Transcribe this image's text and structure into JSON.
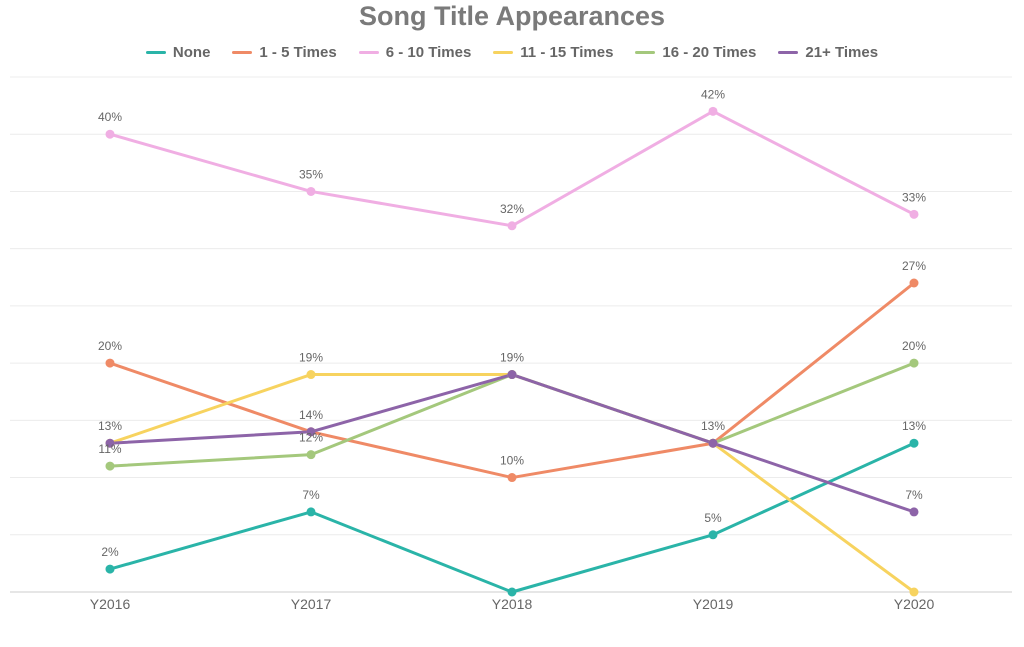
{
  "chart_data": {
    "type": "line",
    "title": "Song Title Appearances",
    "categories": [
      "Y2016",
      "Y2017",
      "Y2018",
      "Y2019",
      "Y2020"
    ],
    "ylim": [
      0,
      45
    ],
    "grid": true,
    "legend_position": "top",
    "value_suffix": "%",
    "series": [
      {
        "name": "None",
        "color": "#2ab4a8",
        "values": [
          2,
          7,
          0,
          5,
          13
        ]
      },
      {
        "name": "1 - 5 Times",
        "color": "#ef8a66",
        "values": [
          20,
          14,
          10,
          13,
          27
        ]
      },
      {
        "name": "6 - 10 Times",
        "color": "#f0aee3",
        "values": [
          40,
          35,
          32,
          42,
          33
        ]
      },
      {
        "name": "11 - 15 Times",
        "color": "#f7d35f",
        "values": [
          13,
          19,
          19,
          13,
          0
        ]
      },
      {
        "name": "16 - 20 Times",
        "color": "#a4c87c",
        "values": [
          11,
          12,
          19,
          13,
          20
        ]
      },
      {
        "name": "21+ Times",
        "color": "#8d64a8",
        "values": [
          13,
          14,
          19,
          13,
          7
        ]
      }
    ],
    "data_labels": [
      {
        "series": 0,
        "point": 0,
        "text": "2%"
      },
      {
        "series": 0,
        "point": 1,
        "text": "7%"
      },
      {
        "series": 0,
        "point": 3,
        "text": "5%"
      },
      {
        "series": 0,
        "point": 4,
        "text": "13%"
      },
      {
        "series": 1,
        "point": 0,
        "text": "20%"
      },
      {
        "series": 1,
        "point": 2,
        "text": "10%"
      },
      {
        "series": 1,
        "point": 4,
        "text": "27%"
      },
      {
        "series": 2,
        "point": 0,
        "text": "40%"
      },
      {
        "series": 2,
        "point": 1,
        "text": "35%"
      },
      {
        "series": 2,
        "point": 2,
        "text": "32%"
      },
      {
        "series": 2,
        "point": 3,
        "text": "42%"
      },
      {
        "series": 2,
        "point": 4,
        "text": "33%"
      },
      {
        "series": 3,
        "point": 0,
        "text": "13%"
      },
      {
        "series": 3,
        "point": 1,
        "text": "19%"
      },
      {
        "series": 3,
        "point": 2,
        "text": "19%"
      },
      {
        "series": 3,
        "point": 3,
        "text": "13%"
      },
      {
        "series": 4,
        "point": 0,
        "text": "11%"
      },
      {
        "series": 4,
        "point": 1,
        "text": "12%"
      },
      {
        "series": 4,
        "point": 4,
        "text": "20%"
      },
      {
        "series": 5,
        "point": 1,
        "text": "14%"
      },
      {
        "series": 5,
        "point": 4,
        "text": "7%"
      }
    ]
  }
}
